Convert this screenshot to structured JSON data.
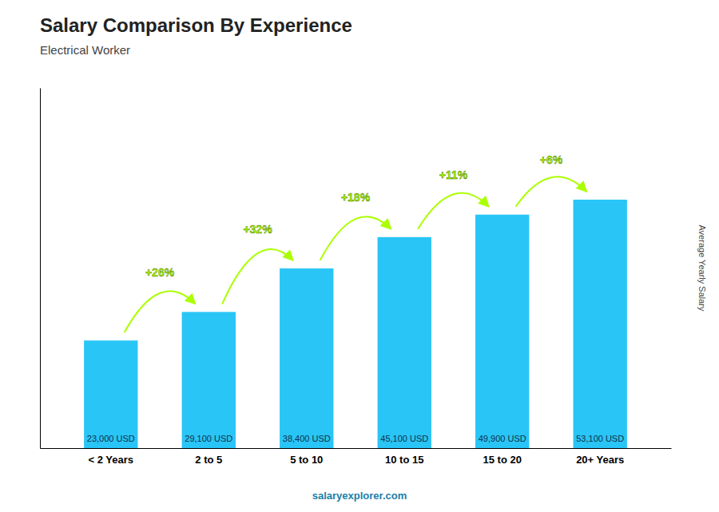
{
  "chart_data": {
    "type": "bar",
    "title": "Salary Comparison By Experience",
    "subtitle": "Electrical Worker",
    "ylabel": "Average Yearly Salary",
    "categories": [
      "< 2 Years",
      "2 to 5",
      "5 to 10",
      "10 to 15",
      "15 to 20",
      "20+ Years"
    ],
    "values": [
      23000,
      29100,
      38400,
      45100,
      49900,
      53100
    ],
    "value_labels": [
      "23,000 USD",
      "29,100 USD",
      "38,400 USD",
      "45,100 USD",
      "49,900 USD",
      "53,100 USD"
    ],
    "data_labels": true,
    "color": "#29c5f6",
    "ylim": [
      0,
      76995
    ],
    "tick_labels": "x",
    "annotations": [
      {
        "text": "+26%",
        "color": "#aaff00"
      },
      {
        "text": "+32%",
        "color": "#aaff00"
      },
      {
        "text": "+18%",
        "color": "#aaff00"
      },
      {
        "text": "+11%",
        "color": "#aaff00"
      },
      {
        "text": "+6%",
        "color": "#aaff00"
      }
    ],
    "footer": "salaryexplorer.com"
  }
}
